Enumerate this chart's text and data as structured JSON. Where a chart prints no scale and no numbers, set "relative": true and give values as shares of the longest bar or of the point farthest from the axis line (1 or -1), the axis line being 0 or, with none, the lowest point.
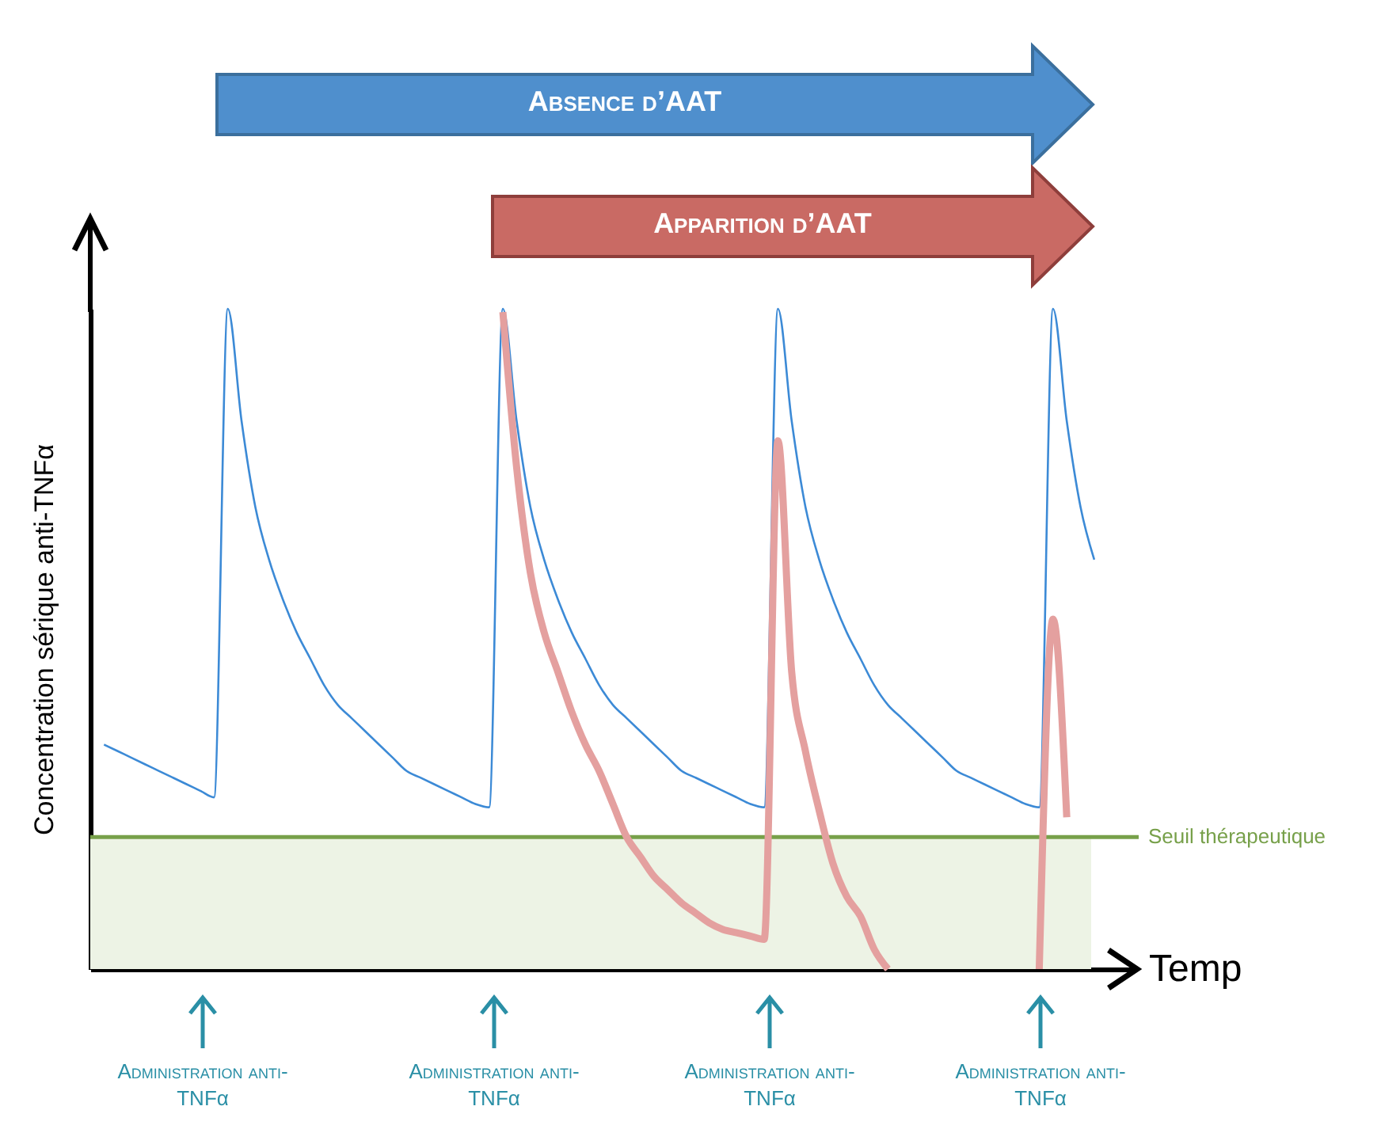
{
  "chart_data": {
    "type": "line",
    "relative": true,
    "xlabel": "Temp",
    "ylabel": "Concentration sérique anti-TNFα",
    "categories": [
      null,
      null,
      null,
      null,
      null,
      null,
      null,
      null,
      null,
      null,
      null,
      null,
      null,
      null,
      null,
      null,
      null,
      null,
      null,
      null,
      null,
      null,
      null,
      null,
      null,
      null,
      null,
      null,
      null,
      null,
      null,
      null,
      null,
      null,
      null,
      null,
      null,
      null,
      null,
      null,
      null,
      null,
      null,
      null,
      null,
      null,
      null,
      null,
      null,
      null,
      null,
      null,
      null,
      null,
      null,
      null,
      null,
      null,
      null,
      null,
      null,
      null,
      null,
      null,
      null,
      null,
      null,
      null,
      null,
      null,
      null,
      null,
      null,
      null,
      null,
      null,
      null
    ],
    "series": [
      {
        "color": "#3c8ad6",
        "values": [
          null,
          0.34,
          0.33,
          0.32,
          0.31,
          0.3,
          0.29,
          0.28,
          0.27,
          0.26,
          1.0,
          0.83,
          0.7,
          0.62,
          0.56,
          0.51,
          0.47,
          0.43,
          0.4,
          0.38,
          0.36,
          0.34,
          0.32,
          0.3,
          0.29,
          0.28,
          0.27,
          0.26,
          0.25,
          0.245,
          1.0,
          0.83,
          0.7,
          0.62,
          0.56,
          0.51,
          0.47,
          0.43,
          0.4,
          0.38,
          0.36,
          0.34,
          0.32,
          0.3,
          0.29,
          0.28,
          0.27,
          0.26,
          0.25,
          0.245,
          1.0,
          0.83,
          0.7,
          0.62,
          0.56,
          0.51,
          0.47,
          0.43,
          0.4,
          0.38,
          0.36,
          0.34,
          0.32,
          0.3,
          0.29,
          0.28,
          0.27,
          0.26,
          0.25,
          0.245,
          1.0,
          0.83,
          0.7,
          0.62,
          null,
          null,
          null
        ]
      },
      {
        "color": "#e4a09f",
        "values": [
          null,
          null,
          null,
          null,
          null,
          null,
          null,
          null,
          null,
          null,
          null,
          null,
          null,
          null,
          null,
          null,
          null,
          null,
          null,
          null,
          null,
          null,
          null,
          null,
          null,
          null,
          null,
          null,
          null,
          null,
          0.995,
          0.76,
          0.6,
          0.51,
          0.45,
          0.39,
          0.34,
          0.3,
          0.25,
          0.2,
          0.17,
          0.14,
          0.12,
          0.1,
          0.085,
          0.07,
          0.06,
          0.055,
          0.05,
          0.045,
          0.8,
          0.45,
          0.33,
          0.24,
          0.16,
          0.11,
          0.08,
          0.03,
          0,
          null,
          null,
          null,
          null,
          null,
          null,
          null,
          null,
          null,
          null,
          0,
          0.53,
          0.23,
          null,
          null,
          null,
          null,
          null
        ]
      }
    ],
    "ref_lines": [
      {
        "axis": "y",
        "value": 0.2,
        "label": "Seuil thérapeutique",
        "color": "#77a04a"
      }
    ],
    "bands": [
      {
        "axis": "y",
        "from": 0,
        "to": 0.2,
        "color": "#edf3e5"
      }
    ],
    "annotations": [
      "Absence d’AAT",
      "Apparition d’AAT",
      "Administration anti-TNFα",
      "Administration anti-TNFα",
      "Administration anti-TNFα",
      "Administration anti-TNFα"
    ]
  }
}
